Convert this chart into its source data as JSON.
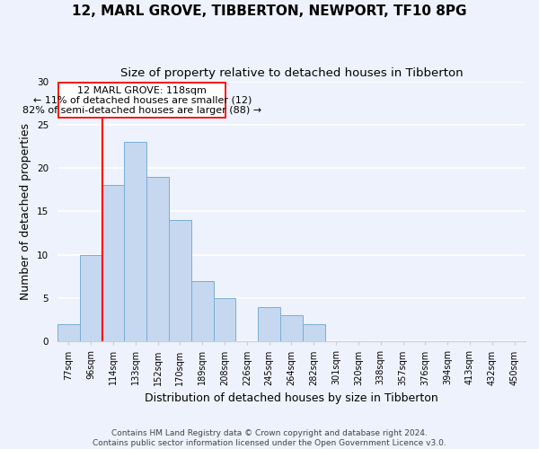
{
  "title": "12, MARL GROVE, TIBBERTON, NEWPORT, TF10 8PG",
  "subtitle": "Size of property relative to detached houses in Tibberton",
  "xlabel": "Distribution of detached houses by size in Tibberton",
  "ylabel": "Number of detached properties",
  "bin_labels": [
    "77sqm",
    "96sqm",
    "114sqm",
    "133sqm",
    "152sqm",
    "170sqm",
    "189sqm",
    "208sqm",
    "226sqm",
    "245sqm",
    "264sqm",
    "282sqm",
    "301sqm",
    "320sqm",
    "338sqm",
    "357sqm",
    "376sqm",
    "394sqm",
    "413sqm",
    "432sqm",
    "450sqm"
  ],
  "bar_heights": [
    2,
    10,
    18,
    23,
    19,
    14,
    7,
    5,
    0,
    4,
    3,
    2,
    0,
    0,
    0,
    0,
    0,
    0,
    0,
    0,
    0
  ],
  "bar_color": "#c5d8f0",
  "bar_edgecolor": "#7aadd4",
  "ylim": [
    0,
    30
  ],
  "yticks": [
    0,
    5,
    10,
    15,
    20,
    25,
    30
  ],
  "annotation_text_line1": "12 MARL GROVE: 118sqm",
  "annotation_text_line2": "← 11% of detached houses are smaller (12)",
  "annotation_text_line3": "82% of semi-detached houses are larger (88) →",
  "red_line_bin_index": 2,
  "footer_line1": "Contains HM Land Registry data © Crown copyright and database right 2024.",
  "footer_line2": "Contains public sector information licensed under the Open Government Licence v3.0.",
  "bg_color": "#eef2fc",
  "grid_color": "#ffffff",
  "title_fontsize": 11,
  "subtitle_fontsize": 9.5,
  "axis_label_fontsize": 9,
  "tick_fontsize": 7,
  "annotation_fontsize": 8,
  "footer_fontsize": 6.5
}
